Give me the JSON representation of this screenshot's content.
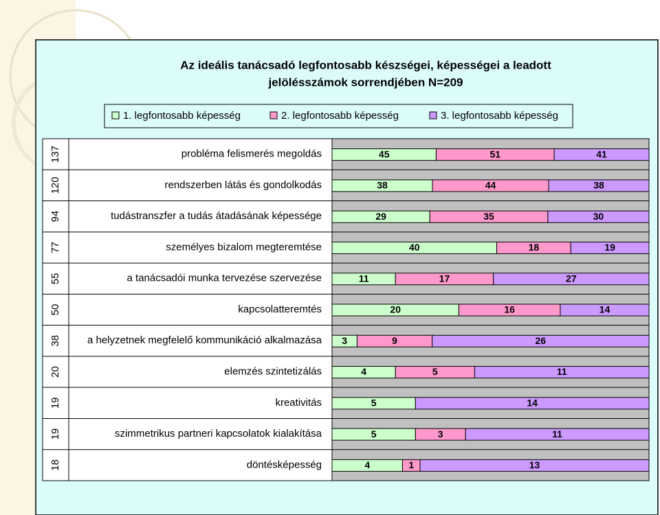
{
  "chart_data": {
    "type": "bar",
    "stacked": "percent",
    "title": [
      "Az ideális tanácsadó legfontosabb készségei, képességei a leadott",
      "jelölésszámok sorrendjében N=209"
    ],
    "categories": [
      "probléma felismerés megoldás",
      "rendszerben látás és gondolkodás",
      "tudástranszfer a tudás átadásának képessége",
      "személyes bizalom megteremtése",
      "a tanácsadói munka tervezése szervezése",
      "kapcsolatteremtés",
      "a helyzetnek megfelelő kommunikáció alkalmazása",
      "elemzés szintetizálás",
      "kreativitás",
      "szimmetrikus partneri kapcsolatok kialakítása",
      "döntésképesség"
    ],
    "totals": [
      137,
      120,
      94,
      77,
      55,
      50,
      38,
      20,
      19,
      19,
      18
    ],
    "series": [
      {
        "name": "1. legfontosabb képesség",
        "color": "#ccffcc",
        "values": [
          45,
          38,
          29,
          40,
          11,
          20,
          3,
          4,
          5,
          5,
          4
        ]
      },
      {
        "name": "2. legfontosabb képesség",
        "color": "#ff99cc",
        "values": [
          51,
          44,
          35,
          18,
          17,
          16,
          9,
          5,
          null,
          3,
          1
        ]
      },
      {
        "name": "3. legfontosabb képesség",
        "color": "#cc99ff",
        "values": [
          41,
          38,
          30,
          19,
          27,
          14,
          26,
          11,
          14,
          11,
          13
        ]
      }
    ]
  }
}
